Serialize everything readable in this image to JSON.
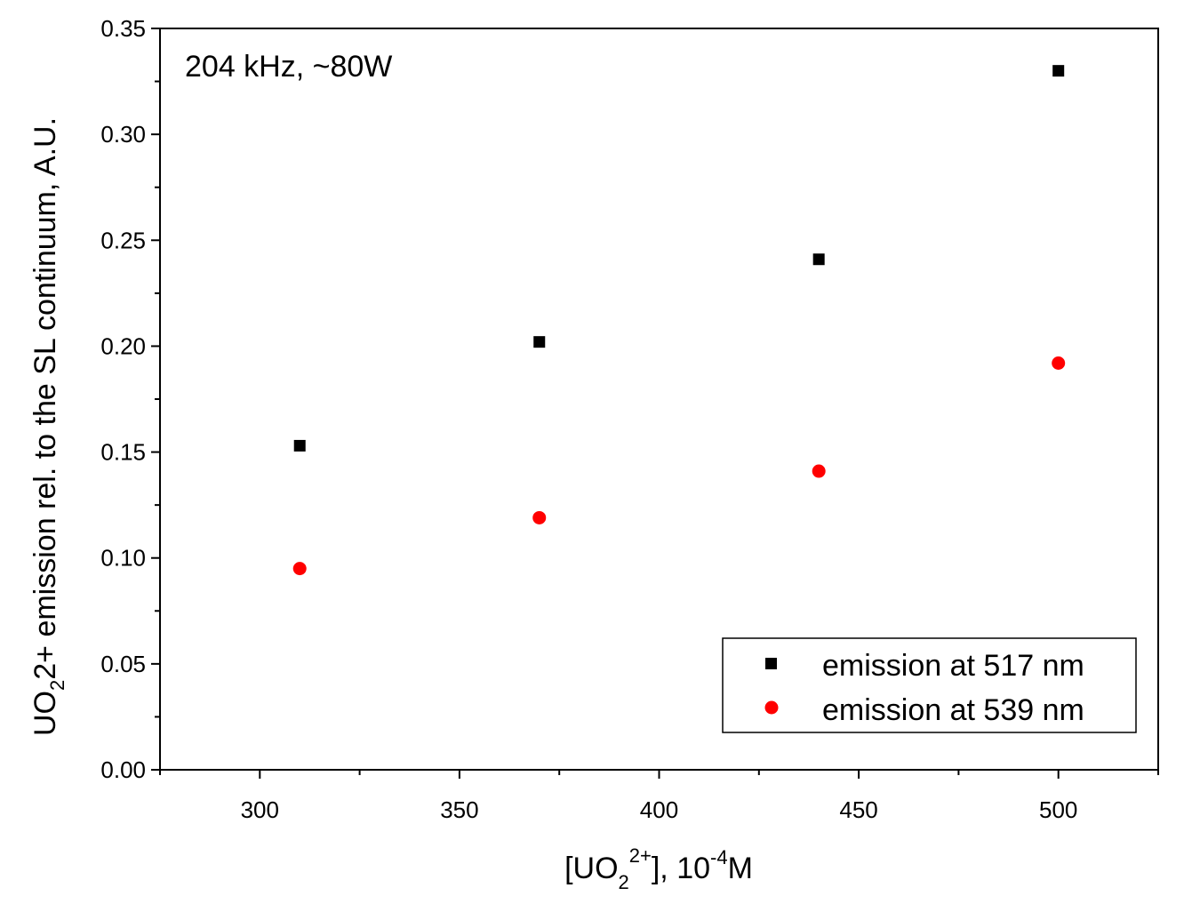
{
  "chart_data": {
    "type": "scatter",
    "annotation": "204 kHz, ~80W",
    "xlabel": {
      "pre": "[UO",
      "sub": "2",
      "sup": "2+",
      "post": "], 10",
      "exp": "-4",
      "unit": "M"
    },
    "ylabel": {
      "pre": "UO",
      "sub": "2",
      "post": "2+ emission rel. to the SL continuum, A.U."
    },
    "xlim": [
      275,
      525
    ],
    "ylim": [
      0,
      0.35
    ],
    "x_ticks": [
      300,
      350,
      400,
      450,
      500
    ],
    "x_tick_labels": [
      "300",
      "350",
      "400",
      "450",
      "500"
    ],
    "y_ticks": [
      0,
      0.05,
      0.1,
      0.15,
      0.2,
      0.25,
      0.3,
      0.35
    ],
    "y_tick_labels": [
      "0.00",
      "0.05",
      "0.10",
      "0.15",
      "0.20",
      "0.25",
      "0.30",
      "0.35"
    ],
    "legend_position": "bottom-right",
    "series": [
      {
        "name": "emission at 517 nm",
        "marker": "square",
        "color": "#000000",
        "x": [
          310,
          370,
          440,
          500
        ],
        "y": [
          0.153,
          0.202,
          0.241,
          0.33
        ]
      },
      {
        "name": "emission at 539 nm",
        "marker": "circle",
        "color": "#ff0000",
        "x": [
          310,
          370,
          440,
          500
        ],
        "y": [
          0.095,
          0.119,
          0.141,
          0.192
        ]
      }
    ]
  }
}
